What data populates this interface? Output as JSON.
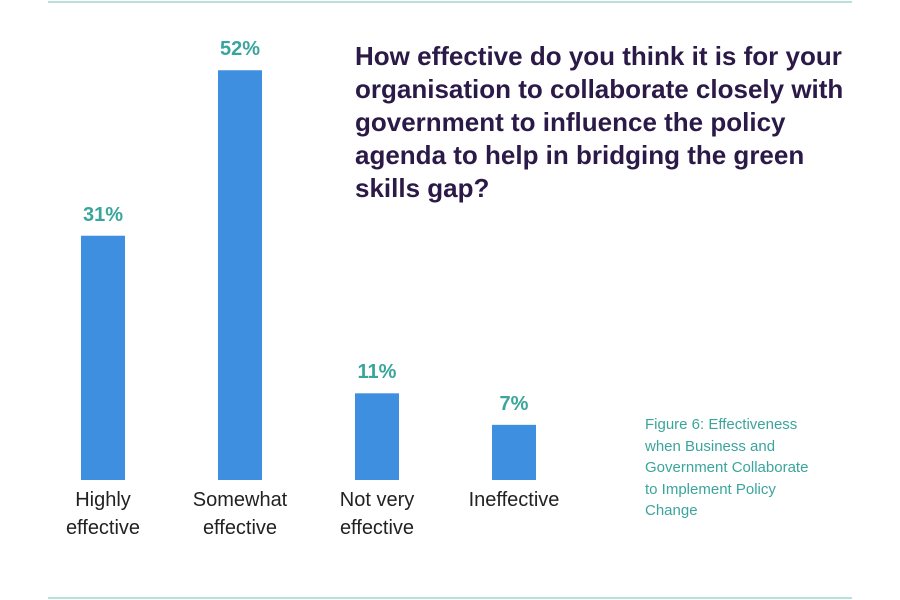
{
  "chart_data": {
    "type": "bar",
    "title": "How effective do you think it is for your organisation to collaborate closely with government to influence the policy agenda to help in bridging the green skills gap?",
    "caption": "Figure 6: Effectiveness when Business and Government Collaborate to Implement Policy Change",
    "categories": [
      "Highly effective",
      "Somewhat effective",
      "Not very effective",
      "Ineffective"
    ],
    "values": [
      31,
      52,
      11,
      7
    ],
    "value_labels": [
      "31%",
      "52%",
      "11%",
      "7%"
    ],
    "color": "#3f8fe0"
  }
}
